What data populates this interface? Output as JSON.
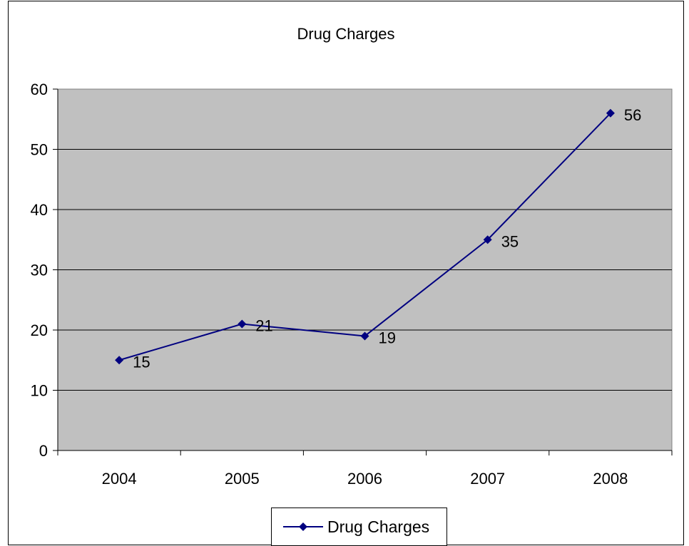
{
  "chart_data": {
    "type": "line",
    "title": "Drug Charges",
    "xlabel": "",
    "ylabel": "",
    "categories": [
      "2004",
      "2005",
      "2006",
      "2007",
      "2008"
    ],
    "series": [
      {
        "name": "Drug Charges",
        "values": [
          15,
          21,
          19,
          35,
          56
        ],
        "data_labels": [
          "15",
          "21",
          "19",
          "35",
          "56"
        ],
        "color": "#000080",
        "marker": "diamond"
      }
    ],
    "ylim": [
      0,
      60
    ],
    "yticks": [
      0,
      10,
      20,
      30,
      40,
      50,
      60
    ],
    "ytick_labels": [
      "0",
      "10",
      "20",
      "30",
      "40",
      "50",
      "60"
    ],
    "grid": true,
    "plot_background": "#c0c0c0",
    "legend": {
      "position": "bottom",
      "entries": [
        "Drug Charges"
      ]
    }
  }
}
